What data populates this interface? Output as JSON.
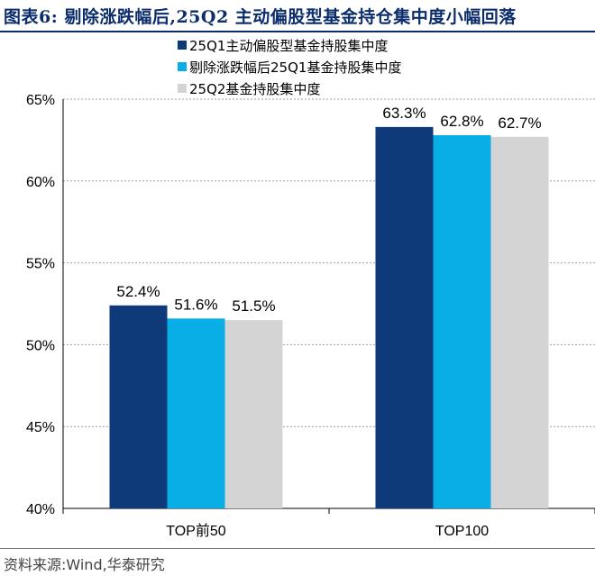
{
  "title": "图表6:  剔除涨跌幅后,25Q2 主动偏股型基金持仓集中度小幅回落",
  "source": "资料来源:Wind,华泰研究",
  "colors": {
    "series1": "#0f3a7a",
    "series2": "#0aaee6",
    "series3": "#d4d4d4",
    "title": "#0b2d6b",
    "grid": "#9a9a9a"
  },
  "chart_data": {
    "type": "bar",
    "categories": [
      "TOP前50",
      "TOP100"
    ],
    "series": [
      {
        "name": "25Q1主动偏股型基金持股集中度",
        "values": [
          52.4,
          63.3
        ],
        "labels": [
          "52.4%",
          "63.3%"
        ]
      },
      {
        "name": "剔除涨跌幅后25Q1基金持股集中度",
        "values": [
          51.6,
          62.8
        ],
        "labels": [
          "51.6%",
          "62.8%"
        ]
      },
      {
        "name": "25Q2基金持股集中度",
        "values": [
          51.5,
          62.7
        ],
        "labels": [
          "51.5%",
          "62.7%"
        ]
      }
    ],
    "yticks": [
      "40%",
      "45%",
      "50%",
      "55%",
      "60%",
      "65%"
    ],
    "ytick_values": [
      40,
      45,
      50,
      55,
      60,
      65
    ],
    "ylim": [
      40,
      65
    ],
    "grid": true,
    "legend_position": "top-center"
  }
}
